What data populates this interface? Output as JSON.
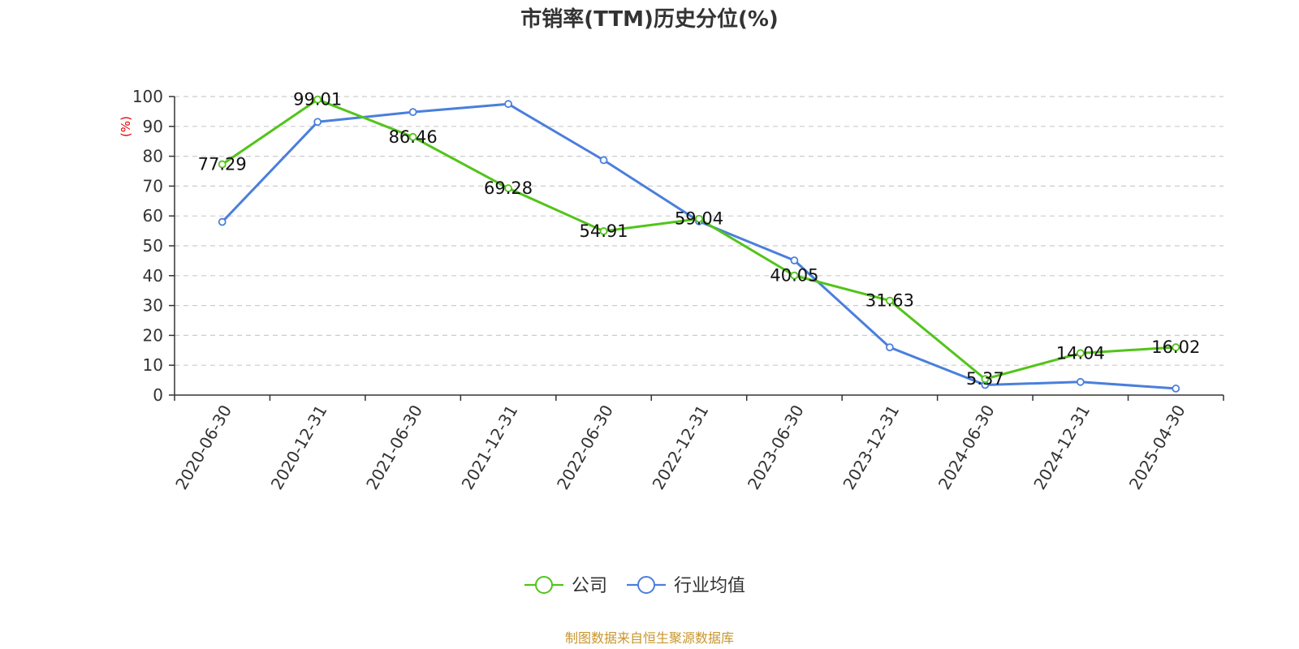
{
  "colors": {
    "company": "#52c41a",
    "industry": "#4a7fdc",
    "title": "#333333",
    "ylabel": "#e60000",
    "source": "#c8962d",
    "grid": "#cccccc",
    "axis": "#333333"
  },
  "chart_data": {
    "type": "line",
    "title": "市销率(TTM)历史分位(%)",
    "ylabel": "(%)",
    "xlabel": "",
    "ylim": [
      0,
      100
    ],
    "yticks": [
      0,
      10,
      20,
      30,
      40,
      50,
      60,
      70,
      80,
      90,
      100
    ],
    "categories": [
      "2020-06-30",
      "2020-12-31",
      "2021-06-30",
      "2021-12-31",
      "2022-06-30",
      "2022-12-31",
      "2023-06-30",
      "2023-12-31",
      "2024-06-30",
      "2024-12-31",
      "2025-04-30"
    ],
    "grid": true,
    "legend_position": "bottom",
    "series": [
      {
        "name": "公司",
        "color": "#52c41a",
        "values": [
          77.29,
          99.01,
          86.46,
          69.28,
          54.91,
          59.04,
          40.05,
          31.63,
          5.37,
          14.04,
          16.02
        ],
        "labels": [
          "77.29",
          "99.01",
          "86.46",
          "69.28",
          "54.91",
          "59.04",
          "40.05",
          "31.63",
          "5.37",
          "14.04",
          "16.02"
        ]
      },
      {
        "name": "行业均值",
        "color": "#4a7fdc",
        "values": [
          58.0,
          91.5,
          94.8,
          97.5,
          78.7,
          58.2,
          45.1,
          16.0,
          3.4,
          4.4,
          2.2
        ]
      }
    ]
  },
  "source": "制图数据来自恒生聚源数据库"
}
